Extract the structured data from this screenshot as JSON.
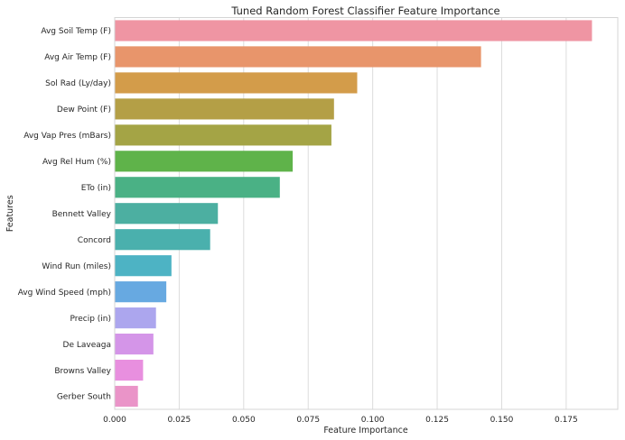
{
  "chart_data": {
    "type": "bar",
    "orientation": "horizontal",
    "title": "Tuned Random Forest Classifier Feature Importance",
    "xlabel": "Feature Importance",
    "ylabel": "Features",
    "xlim": [
      0,
      0.195
    ],
    "xticks": [
      0.0,
      0.025,
      0.05,
      0.075,
      0.1,
      0.125,
      0.15,
      0.175
    ],
    "xtick_labels": [
      "0.000",
      "0.025",
      "0.050",
      "0.075",
      "0.100",
      "0.125",
      "0.150",
      "0.175"
    ],
    "grid": true,
    "categories": [
      "Avg Soil Temp (F)",
      "Avg Air Temp (F)",
      "Sol Rad (Ly/day)",
      "Dew Point (F)",
      "Avg Vap Pres (mBars)",
      "Avg Rel Hum (%)",
      "ETo (in)",
      "Bennett Valley",
      "Concord",
      "Wind Run (miles)",
      "Avg Wind Speed (mph)",
      "Precip (in)",
      "De Laveaga",
      "Browns Valley",
      "Gerber South"
    ],
    "values": [
      0.185,
      0.142,
      0.094,
      0.085,
      0.084,
      0.069,
      0.064,
      0.04,
      0.037,
      0.022,
      0.02,
      0.016,
      0.015,
      0.011,
      0.009
    ],
    "colors": [
      "#ef95a3",
      "#e8956b",
      "#d39c4a",
      "#b49f46",
      "#a4a445",
      "#5fb34a",
      "#4ab185",
      "#4cafa1",
      "#4ab0ad",
      "#4db3c4",
      "#67a9e1",
      "#aca6ee",
      "#d495e8",
      "#e88fdf",
      "#ea94c8"
    ]
  }
}
